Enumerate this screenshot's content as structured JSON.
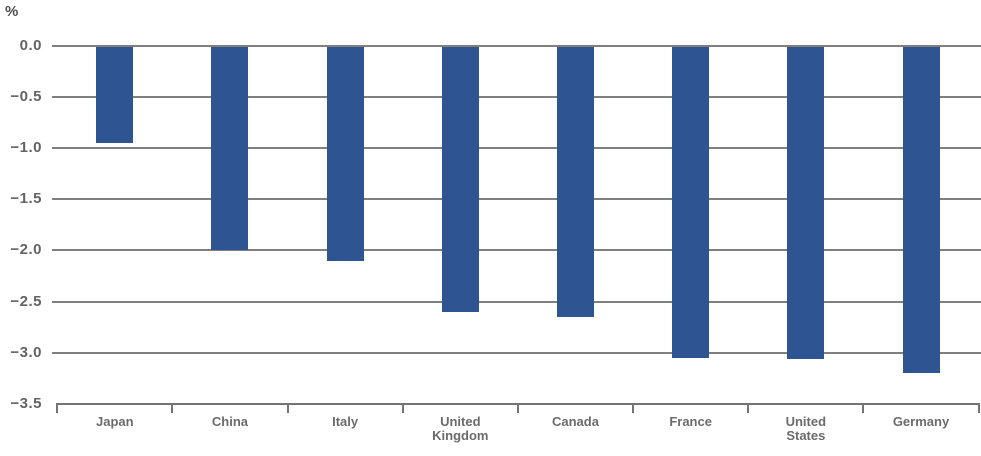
{
  "chart_data": {
    "type": "bar",
    "title": "",
    "xlabel": "",
    "ylabel": "%",
    "categories": [
      "Japan",
      "China",
      "Italy",
      "United Kingdom",
      "Canada",
      "France",
      "United States",
      "Germany"
    ],
    "values": [
      -0.95,
      -2.0,
      -2.1,
      -2.6,
      -2.65,
      -3.05,
      -3.06,
      -3.2
    ],
    "ylim": [
      -3.5,
      0.0
    ],
    "ytick_step": 0.5,
    "ytick_labels": [
      "0.0",
      "−0.5",
      "−1.0",
      "−1.5",
      "−2.0",
      "−2.5",
      "−3.0",
      "−3.5"
    ],
    "grid": true,
    "legend": "none",
    "colors": {
      "bar": "#2e5492",
      "gridline": "#7f7f7f",
      "axis": "#747474",
      "tick_text": "#636363",
      "category_text": "#6b6b6b"
    }
  }
}
